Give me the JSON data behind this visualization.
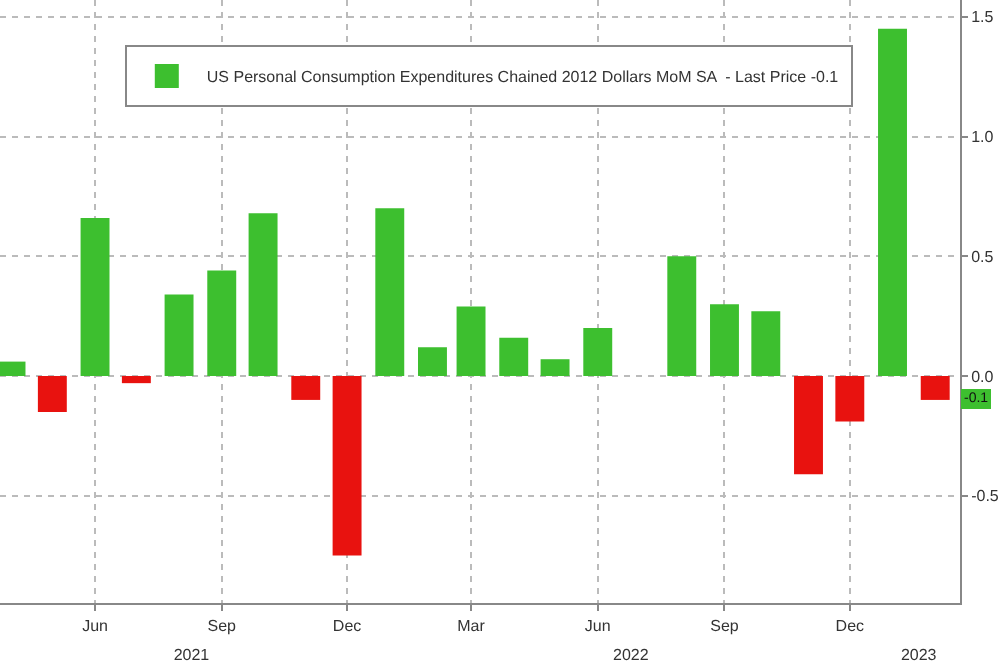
{
  "chart_data": {
    "type": "bar",
    "x": [
      "2021-04",
      "2021-05",
      "2021-06",
      "2021-07",
      "2021-08",
      "2021-09",
      "2021-10",
      "2021-11",
      "2021-12",
      "2022-01",
      "2022-02",
      "2022-03",
      "2022-04",
      "2022-05",
      "2022-06",
      "2022-07",
      "2022-08",
      "2022-09",
      "2022-10",
      "2022-11",
      "2022-12",
      "2023-01",
      "2023-02"
    ],
    "series": [
      {
        "name": "US Personal Consumption Expenditures Chained 2012 Dollars MoM SA  - Last Price -0.1",
        "color": "#3dbf2f",
        "colors": [
          "#3dbf2f",
          "#e8120f",
          "#3dbf2f",
          "#e8120f",
          "#3dbf2f",
          "#3dbf2f",
          "#3dbf2f",
          "#e8120f",
          "#e8120f",
          "#3dbf2f",
          "#3dbf2f",
          "#3dbf2f",
          "#3dbf2f",
          "#3dbf2f",
          "#3dbf2f",
          "#3dbf2f",
          "#3dbf2f",
          "#3dbf2f",
          "#3dbf2f",
          "#e8120f",
          "#e8120f",
          "#3dbf2f",
          "#e8120f"
        ],
        "values": [
          0.06,
          -0.15,
          0.66,
          -0.03,
          0.34,
          0.44,
          0.68,
          -0.1,
          -0.75,
          0.7,
          0.12,
          0.29,
          0.16,
          0.07,
          0.2,
          0.0,
          0.5,
          0.3,
          0.27,
          -0.41,
          -0.19,
          1.45,
          -0.1
        ]
      }
    ],
    "xlim": [
      "2021-03-24",
      "2023-02-19"
    ],
    "xticks": [
      {
        "value": "2021-06",
        "label": "Jun"
      },
      {
        "value": "2021-09",
        "label": "Sep"
      },
      {
        "value": "2021-12",
        "label": "Dec"
      },
      {
        "value": "2022-03",
        "label": "Mar"
      },
      {
        "value": "2022-06",
        "label": "Jun"
      },
      {
        "value": "2022-09",
        "label": "Sep"
      },
      {
        "value": "2022-12",
        "label": "Dec"
      }
    ],
    "x2lim": [
      "2021-03-24",
      "2023-02-19"
    ],
    "x2ticks": [
      {
        "value": "2021-08-10",
        "label": "2021"
      },
      {
        "value": "2022-06-25",
        "label": "2022"
      },
      {
        "value": "2023-01-20",
        "label": "2023"
      }
    ],
    "ylim": [
      -0.95,
      1.57
    ],
    "yticks": [
      {
        "value": -0.5,
        "label": "-0.5"
      },
      {
        "value": 0,
        "label": "0.0"
      },
      {
        "value": 0.5,
        "label": "0.5"
      },
      {
        "value": 1,
        "label": "1.0"
      },
      {
        "value": 1.5,
        "label": "1.5"
      }
    ],
    "annotations": [
      {
        "text": "-0.1",
        "y": -0.1
      }
    ],
    "grid": true,
    "legend": "top left"
  }
}
